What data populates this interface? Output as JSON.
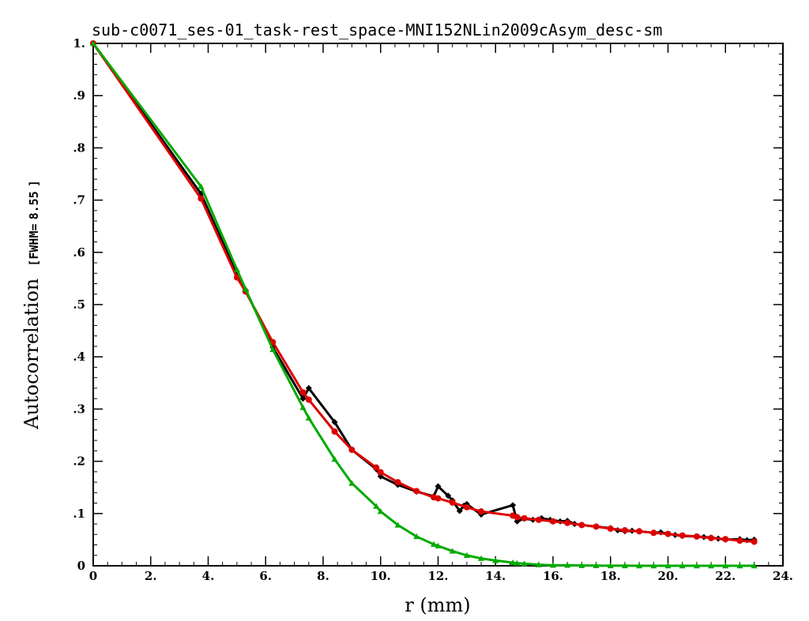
{
  "chart_data": {
    "type": "line",
    "title": "sub-c0071_ses-01_task-rest_space-MNI152NLin2009cAsym_desc-sm",
    "xlabel": "r (mm)",
    "ylabel": "Autocorrelation",
    "ylabel_bracket_open": "[FWHM=",
    "ylabel_fwhm_value": "8.55",
    "ylabel_bracket_close": "]",
    "xlim": [
      0,
      24
    ],
    "ylim": [
      0,
      1.0
    ],
    "x_ticks": [
      0,
      2,
      4,
      6,
      8,
      10,
      12,
      14,
      16,
      18,
      20,
      22,
      24
    ],
    "x_tick_labels": [
      "0",
      "2.",
      "4.",
      "6.",
      "8.",
      "10.",
      "12.",
      "14.",
      "16.",
      "18.",
      "20.",
      "22.",
      "24."
    ],
    "y_ticks": [
      0,
      0.1,
      0.2,
      0.3,
      0.4,
      0.5,
      0.6,
      0.7,
      0.8,
      0.9,
      1.0
    ],
    "y_tick_labels": [
      "0",
      ".1",
      ".2",
      ".3",
      ".4",
      ".5",
      ".6",
      ".7",
      ".8",
      ".9",
      "1."
    ],
    "grid": false,
    "series": [
      {
        "color": "#000000",
        "marker": "diamond",
        "x": [
          0,
          3.75,
          5.0,
          5.3,
          6.25,
          7.3,
          7.5,
          8.4,
          9.0,
          9.85,
          10.0,
          10.6,
          11.25,
          11.85,
          12.0,
          12.35,
          12.5,
          12.75,
          12.9,
          13.0,
          13.5,
          14.6,
          14.75,
          15.0,
          15.3,
          15.6,
          15.9,
          16.25,
          16.5,
          16.75,
          17.0,
          17.5,
          18.0,
          18.25,
          18.5,
          18.75,
          19.0,
          19.5,
          19.75,
          20.0,
          20.25,
          20.5,
          21.0,
          21.25,
          21.5,
          21.75,
          22.0,
          22.5,
          22.75,
          23.0
        ],
        "y": [
          1.0,
          0.712,
          0.558,
          0.528,
          0.418,
          0.32,
          0.34,
          0.275,
          0.222,
          0.185,
          0.171,
          0.155,
          0.142,
          0.133,
          0.152,
          0.134,
          0.125,
          0.105,
          0.115,
          0.118,
          0.098,
          0.116,
          0.085,
          0.09,
          0.088,
          0.091,
          0.088,
          0.085,
          0.086,
          0.08,
          0.078,
          0.075,
          0.072,
          0.068,
          0.066,
          0.067,
          0.066,
          0.063,
          0.064,
          0.061,
          0.059,
          0.057,
          0.056,
          0.055,
          0.054,
          0.052,
          0.05,
          0.051,
          0.049,
          0.05
        ]
      },
      {
        "color": "#dd0000",
        "marker": "circle",
        "x": [
          0,
          3.75,
          5.0,
          5.3,
          6.25,
          7.3,
          7.5,
          8.4,
          9.0,
          9.85,
          10.0,
          10.6,
          11.25,
          11.85,
          12.0,
          12.5,
          13.0,
          13.5,
          14.6,
          14.75,
          15.0,
          15.5,
          16.0,
          16.5,
          17.0,
          17.5,
          18.0,
          18.5,
          19.0,
          19.5,
          20.0,
          20.5,
          21.0,
          21.5,
          22.0,
          22.5,
          23.0
        ],
        "y": [
          1.0,
          0.703,
          0.552,
          0.525,
          0.428,
          0.332,
          0.318,
          0.257,
          0.222,
          0.188,
          0.179,
          0.16,
          0.143,
          0.131,
          0.129,
          0.121,
          0.112,
          0.104,
          0.096,
          0.093,
          0.091,
          0.088,
          0.085,
          0.082,
          0.078,
          0.075,
          0.071,
          0.068,
          0.066,
          0.063,
          0.061,
          0.058,
          0.056,
          0.053,
          0.051,
          0.048,
          0.046
        ]
      },
      {
        "color": "#00aa00",
        "marker": "triangle",
        "x": [
          0,
          3.75,
          5.0,
          5.3,
          6.25,
          7.3,
          7.5,
          8.4,
          9.0,
          9.85,
          10.0,
          10.6,
          11.25,
          11.85,
          12.0,
          12.5,
          13.0,
          13.5,
          14.0,
          14.6,
          14.75,
          15.0,
          15.5,
          16.0,
          16.5,
          17.0,
          17.5,
          18.0,
          18.5,
          19.0,
          19.5,
          20.0,
          20.5,
          21.0,
          21.5,
          22.0,
          22.5,
          23.0
        ],
        "y": [
          1.0,
          0.726,
          0.567,
          0.53,
          0.414,
          0.303,
          0.283,
          0.204,
          0.158,
          0.114,
          0.104,
          0.078,
          0.056,
          0.041,
          0.038,
          0.028,
          0.02,
          0.014,
          0.01,
          0.006,
          0.005,
          0.004,
          0.002,
          0.001,
          0.001,
          0.0005,
          0.0003,
          0.0002,
          0.0001,
          0,
          0,
          0,
          0,
          0,
          0,
          0,
          0,
          0
        ]
      }
    ]
  }
}
